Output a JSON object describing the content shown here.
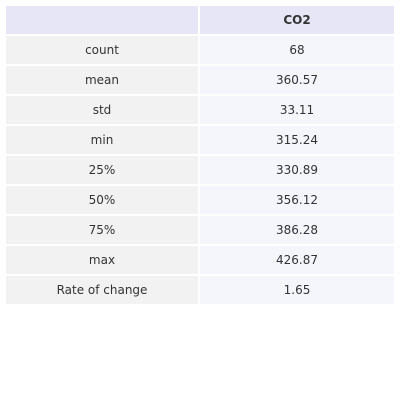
{
  "table": {
    "corner_header": "",
    "column_header": "CO2",
    "rows": [
      {
        "label": "count",
        "value": "68"
      },
      {
        "label": "mean",
        "value": "360.57"
      },
      {
        "label": "std",
        "value": "33.11"
      },
      {
        "label": "min",
        "value": "315.24"
      },
      {
        "label": "25%",
        "value": "330.89"
      },
      {
        "label": "50%",
        "value": "356.12"
      },
      {
        "label": "75%",
        "value": "386.28"
      },
      {
        "label": "max",
        "value": "426.87"
      },
      {
        "label": "Rate of change",
        "value": "1.65"
      }
    ]
  },
  "colors": {
    "header_bg": "#e6e6f6",
    "label_cell_bg": "#f2f2f2",
    "value_cell_bg": "#f5f6fb",
    "text": "#333333"
  }
}
